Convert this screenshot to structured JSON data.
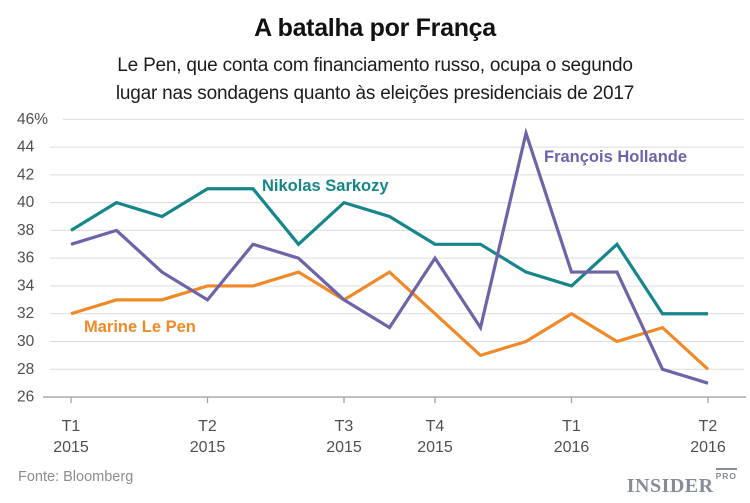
{
  "header": {
    "title": "A batalha por França",
    "subtitle_lines": [
      "Le Pen, que conta com financiamento russo, ocupa o segundo",
      "lugar nas sondagens quanto às eleições presidenciais de 2017"
    ]
  },
  "chart_data": {
    "type": "line",
    "title": "A batalha por França",
    "subtitle": "Le Pen, que conta com financiamento russo, ocupa o segundo lugar nas sondagens quanto às eleições presidenciais de 2017",
    "unit": "%",
    "ylim": [
      26,
      46
    ],
    "grid": "horizontal",
    "legend_position": "inline-labels",
    "yticks": [
      {
        "value": 46,
        "label": "46%"
      },
      {
        "value": 44,
        "label": "44"
      },
      {
        "value": 42,
        "label": "42"
      },
      {
        "value": 40,
        "label": "40"
      },
      {
        "value": 38,
        "label": "38"
      },
      {
        "value": 36,
        "label": "36"
      },
      {
        "value": 34,
        "label": "34"
      },
      {
        "value": 32,
        "label": "32"
      },
      {
        "value": 30,
        "label": "30"
      },
      {
        "value": 28,
        "label": "28"
      },
      {
        "value": 26,
        "label": "26"
      }
    ],
    "xticks": [
      {
        "point_index": 0,
        "quarter": "T1",
        "year": "2015"
      },
      {
        "point_index": 3,
        "quarter": "T2",
        "year": "2015"
      },
      {
        "point_index": 6,
        "quarter": "T3",
        "year": "2015"
      },
      {
        "point_index": 8,
        "quarter": "T4",
        "year": "2015"
      },
      {
        "point_index": 11,
        "quarter": "T1",
        "year": "2016"
      },
      {
        "point_index": 14,
        "quarter": "T2",
        "year": "2016"
      }
    ],
    "series": [
      {
        "name": "Marine Le Pen",
        "color": "#f08a28",
        "values": [
          32,
          33,
          33,
          34,
          34,
          35,
          33,
          35,
          32,
          29,
          30,
          32,
          30,
          31,
          28
        ]
      },
      {
        "name": "Nikolas Sarkozy",
        "color": "#16868b",
        "values": [
          38,
          40,
          39,
          41,
          41,
          37,
          40,
          39,
          37,
          37,
          35,
          34,
          37,
          32,
          32
        ]
      },
      {
        "name": "François Hollande",
        "color": "#6f62a8",
        "values": [
          37,
          38,
          35,
          33,
          37,
          36,
          33,
          31,
          36,
          31,
          45,
          35,
          35,
          28,
          27
        ]
      }
    ]
  },
  "footer": {
    "source": "Fonte: Bloomberg",
    "logo_main": "INSIDER",
    "logo_badge": "PRO"
  }
}
